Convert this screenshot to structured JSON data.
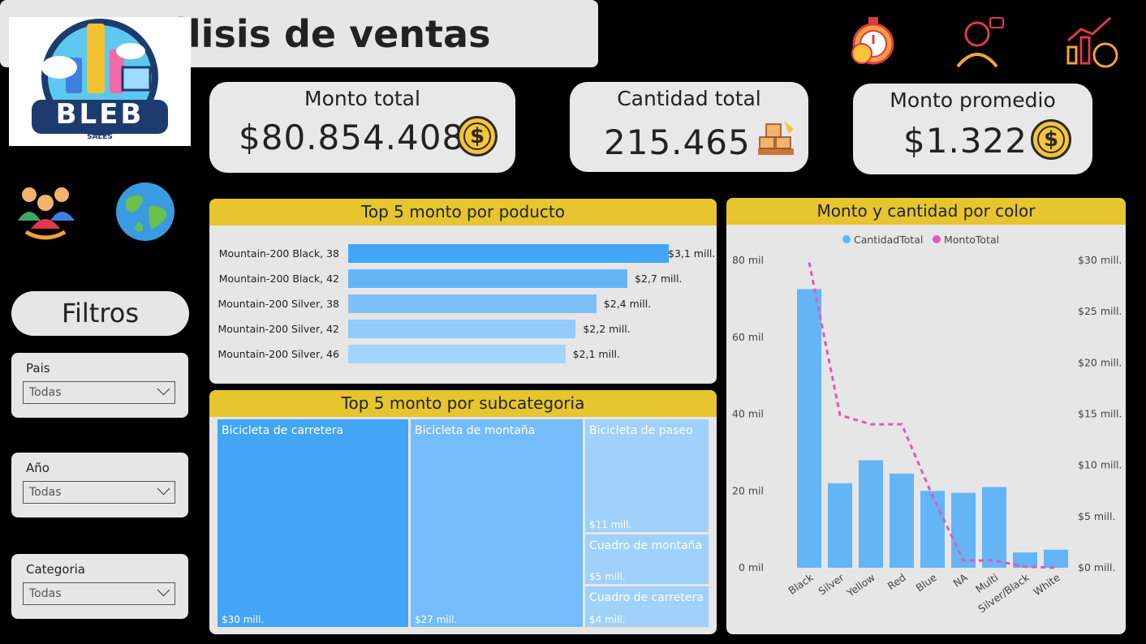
{
  "header": {
    "title": "Análisis de ventas"
  },
  "logo": {
    "brand": "BLEB",
    "sub": "SALES"
  },
  "kpis": {
    "monto_total": {
      "label": "Monto total",
      "value": "$80.854.408"
    },
    "cantidad_total": {
      "label": "Cantidad total",
      "value": "215.465"
    },
    "monto_promedio": {
      "label": "Monto promedio",
      "value": "$1.322"
    }
  },
  "coin_symbol": "$",
  "filters": {
    "title": "Filtros",
    "items": [
      {
        "label": "Pais",
        "value": "Todas"
      },
      {
        "label": "Año",
        "value": "Todas"
      },
      {
        "label": "Categoria",
        "value": "Todas"
      }
    ]
  },
  "top_products": {
    "title": "Top 5 monto por poducto",
    "items": [
      {
        "name": "Mountain-200 Black, 38",
        "label": "$3,1 mill."
      },
      {
        "name": "Mountain-200 Black, 42",
        "label": "$2,7 mill."
      },
      {
        "name": "Mountain-200 Silver, 38",
        "label": "$2,4 mill."
      },
      {
        "name": "Mountain-200 Silver, 42",
        "label": "$2,2 mill."
      },
      {
        "name": "Mountain-200 Silver, 46",
        "label": "$2,1 mill."
      }
    ]
  },
  "top_subcategories": {
    "title": "Top 5 monto por subcategoria",
    "items": [
      {
        "name": "Bicicleta de carretera",
        "label": "$30 mill."
      },
      {
        "name": "Bicicleta de montaña",
        "label": "$27 mill."
      },
      {
        "name": "Bicicleta de paseo",
        "label": "$11 mill."
      },
      {
        "name": "Cuadro de montaña",
        "label": "$5 mill."
      },
      {
        "name": "Cuadro de carretera",
        "label": "$4 mill."
      }
    ]
  },
  "color_chart": {
    "title": "Monto y cantidad por color",
    "legend": [
      "CantidadTotal",
      "MontoTotal"
    ],
    "y_left_ticks": [
      "80 mil",
      "60 mil",
      "40 mil",
      "20 mil",
      "0 mil"
    ],
    "y_right_ticks": [
      "$30 mill.",
      "$25 mill.",
      "$20 mill.",
      "$15 mill.",
      "$10 mill.",
      "$5 mill.",
      "$0 mill."
    ]
  },
  "colors": {
    "accent": "#e6c52e",
    "bar": "#64b5f6",
    "line": "#e05ab4",
    "panel": "#e6e6e6"
  },
  "chart_data": [
    {
      "type": "bar",
      "title": "Top 5 monto por poducto",
      "categories": [
        "Mountain-200 Black, 38",
        "Mountain-200 Black, 42",
        "Mountain-200 Silver, 38",
        "Mountain-200 Silver, 42",
        "Mountain-200 Silver, 46"
      ],
      "values": [
        3.1,
        2.7,
        2.4,
        2.2,
        2.1
      ],
      "orientation": "horizontal"
    },
    {
      "type": "table",
      "title": "Top 5 monto por subcategoria",
      "categories": [
        "Bicicleta de carretera",
        "Bicicleta de montaña",
        "Bicicleta de paseo",
        "Cuadro de montaña",
        "Cuadro de carretera"
      ],
      "values": [
        30,
        27,
        11,
        5,
        4
      ]
    },
    {
      "type": "bar",
      "title": "Monto y cantidad por color",
      "categories": [
        "Black",
        "Silver",
        "Yellow",
        "Red",
        "Blue",
        "NA",
        "Multi",
        "Silver/Black",
        "White"
      ],
      "series": [
        {
          "name": "CantidadTotal",
          "type": "bar",
          "axis": "left",
          "values": [
            72500,
            22000,
            28000,
            24500,
            20000,
            19500,
            21000,
            4000,
            4700
          ]
        },
        {
          "name": "MontoTotal",
          "type": "line",
          "axis": "right",
          "values": [
            29.8,
            14.9,
            14.0,
            14.0,
            7.0,
            0.7,
            0.7,
            0.1,
            0.0
          ]
        }
      ],
      "ylim_left": [
        0,
        80000
      ],
      "ylim_right": [
        0,
        30
      ],
      "legend_position": "top-center",
      "grid": false
    }
  ]
}
